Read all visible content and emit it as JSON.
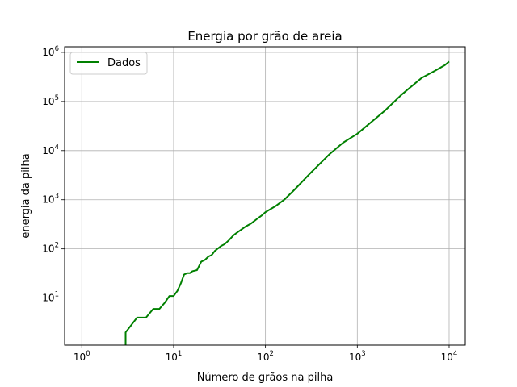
{
  "chart_data": {
    "type": "line",
    "title": "Energia por grão de areia",
    "xlabel": "Número de grãos na pilha",
    "ylabel": "energia da pilha",
    "xscale": "log",
    "yscale": "log",
    "xlim": [
      0.65,
      15000
    ],
    "ylim": [
      1.1,
      1300000
    ],
    "xticks": [
      {
        "base": "10",
        "exp": "0",
        "value": 1
      },
      {
        "base": "10",
        "exp": "1",
        "value": 10
      },
      {
        "base": "10",
        "exp": "2",
        "value": 100
      },
      {
        "base": "10",
        "exp": "3",
        "value": 1000
      },
      {
        "base": "10",
        "exp": "4",
        "value": 10000
      }
    ],
    "yticks": [
      {
        "base": "10",
        "exp": "1",
        "value": 10
      },
      {
        "base": "10",
        "exp": "2",
        "value": 100
      },
      {
        "base": "10",
        "exp": "3",
        "value": 1000
      },
      {
        "base": "10",
        "exp": "4",
        "value": 10000
      },
      {
        "base": "10",
        "exp": "5",
        "value": 100000
      },
      {
        "base": "10",
        "exp": "6",
        "value": 1000000
      }
    ],
    "grid": true,
    "legend": {
      "position": "top-left"
    },
    "series": [
      {
        "name": "Dados",
        "color": "#008000",
        "x": [
          3,
          3,
          4,
          5,
          6,
          7,
          8,
          9,
          10,
          11,
          12,
          13,
          14,
          15,
          16,
          18,
          20,
          22,
          24,
          26,
          28,
          30,
          33,
          36,
          40,
          45,
          50,
          60,
          70,
          80,
          90,
          100,
          130,
          160,
          200,
          300,
          500,
          700,
          1000,
          2000,
          3000,
          5000,
          7000,
          9000,
          10000
        ],
        "y": [
          1.1,
          2,
          4,
          4,
          6,
          6,
          8,
          11,
          11,
          14,
          20,
          30,
          32,
          32,
          35,
          37,
          55,
          60,
          70,
          75,
          90,
          100,
          115,
          125,
          150,
          190,
          220,
          280,
          330,
          400,
          470,
          560,
          750,
          1000,
          1500,
          3300,
          8500,
          14500,
          22000,
          65000,
          135000,
          300000,
          420000,
          550000,
          650000
        ]
      }
    ]
  }
}
